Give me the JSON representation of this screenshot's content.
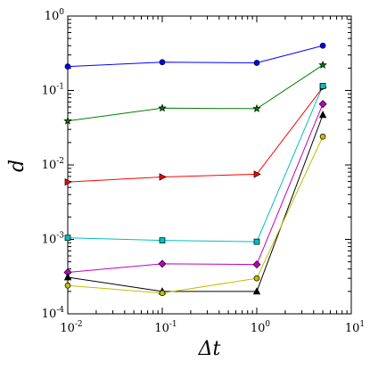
{
  "chart_data": {
    "type": "line",
    "title": "",
    "xlabel": "Δt",
    "ylabel": "d",
    "xscale": "log",
    "yscale": "log",
    "xlim": [
      0.01,
      10
    ],
    "ylim": [
      0.0001,
      1
    ],
    "grid": false,
    "legend": "none",
    "x": [
      0.01,
      0.1,
      1,
      5
    ],
    "x_ticks": [
      {
        "base": "10",
        "exp": "-2"
      },
      {
        "base": "10",
        "exp": "-1"
      },
      {
        "base": "10",
        "exp": "0"
      },
      {
        "base": "10",
        "exp": "1"
      }
    ],
    "y_ticks": [
      {
        "base": "10",
        "exp": "-4"
      },
      {
        "base": "10",
        "exp": "-3"
      },
      {
        "base": "10",
        "exp": "-2"
      },
      {
        "base": "10",
        "exp": "-1"
      },
      {
        "base": "10",
        "exp": "0"
      }
    ],
    "series": [
      {
        "color": "#0000ff",
        "marker": "circle",
        "values": [
          0.21,
          0.24,
          0.235,
          0.4
        ]
      },
      {
        "color": "#007f00",
        "marker": "star",
        "values": [
          0.039,
          0.058,
          0.057,
          0.22
        ]
      },
      {
        "color": "#ff0000",
        "marker": "triangle-right",
        "values": [
          0.0059,
          0.0069,
          0.0075,
          0.11
        ]
      },
      {
        "color": "#00bfbf",
        "marker": "square",
        "values": [
          0.00105,
          0.00097,
          0.00093,
          0.115
        ]
      },
      {
        "color": "#bf00bf",
        "marker": "diamond",
        "values": [
          0.00036,
          0.00047,
          0.00046,
          0.066
        ]
      },
      {
        "color": "#000000",
        "marker": "triangle-up",
        "values": [
          0.00031,
          0.0002,
          0.0002,
          0.047
        ]
      },
      {
        "color": "#bfbf00",
        "marker": "circle",
        "values": [
          0.00024,
          0.00019,
          0.0003,
          0.024
        ]
      }
    ]
  }
}
